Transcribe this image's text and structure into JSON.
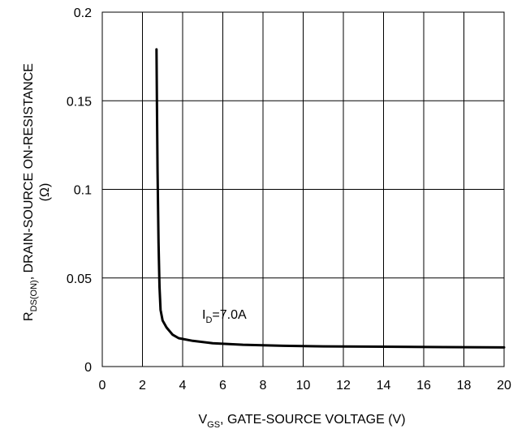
{
  "chart_data": {
    "type": "line",
    "title": "",
    "xlabel": {
      "main": "V",
      "sub": "GS",
      "rest": ", GATE-SOURCE VOLTAGE (V)"
    },
    "ylabel": {
      "main": "R",
      "sub": "DS(ON)",
      "rest": ", DRAIN-SOURCE ON-RESISTANCE",
      "line2": "(Ω)"
    },
    "xlim": [
      0,
      20
    ],
    "ylim": [
      0,
      0.2
    ],
    "x_ticks": [
      "0",
      "2",
      "4",
      "6",
      "8",
      "10",
      "12",
      "14",
      "16",
      "18",
      "20"
    ],
    "y_ticks": [
      "0",
      "0.05",
      "0.1",
      "0.15",
      "0.2"
    ],
    "grid": true,
    "annotation": {
      "main": "I",
      "sub": "D",
      "rest": "=7.0A"
    },
    "series": [
      {
        "x": [
          2.7,
          2.72,
          2.75,
          2.8,
          2.85,
          2.9,
          3.0,
          3.2,
          3.5,
          3.8,
          4.5,
          5.5,
          7,
          9,
          11,
          14,
          17,
          20
        ],
        "y": [
          0.179,
          0.15,
          0.11,
          0.07,
          0.045,
          0.032,
          0.026,
          0.022,
          0.018,
          0.016,
          0.0145,
          0.0132,
          0.0123,
          0.0117,
          0.0114,
          0.0112,
          0.011,
          0.0108
        ]
      }
    ]
  }
}
